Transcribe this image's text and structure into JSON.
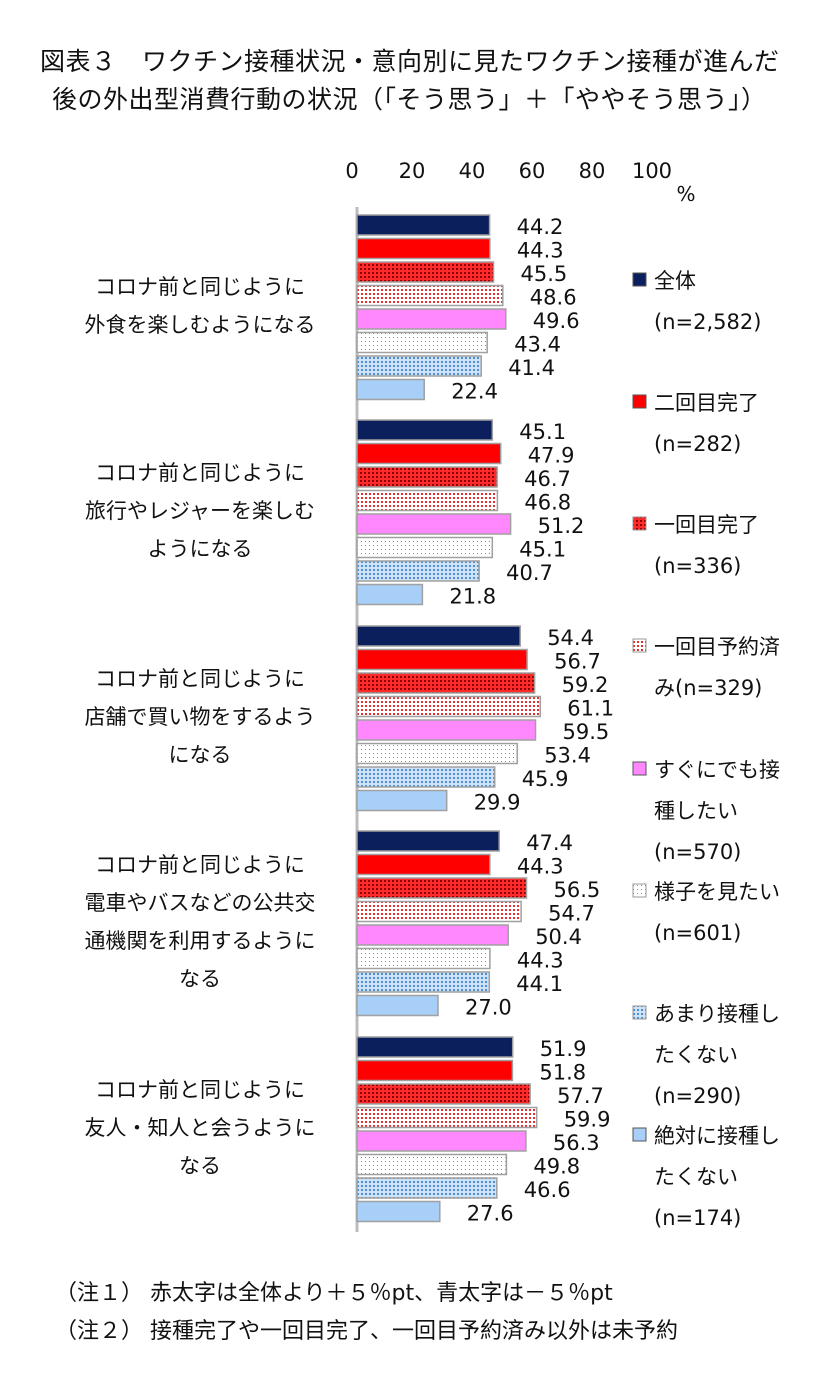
{
  "title_line1": "図表３　ワクチン接種状況・意向別に見たワクチン接種が進んだ",
  "title_line2": "後の外出型消費行動の状況（「そう思う」＋「ややそう思う」）",
  "notes": [
    "（注１） 赤太字は全体より＋５％pt、青太字は－５％pt",
    "（注２） 接種完了や一回目完了、一回目予約済み以外は未予約"
  ],
  "chart_data": {
    "type": "bar",
    "orientation": "horizontal",
    "xlim": [
      0,
      100
    ],
    "x_ticks": [
      "0",
      "20",
      "40",
      "60",
      "80",
      "100"
    ],
    "x_unit": "%",
    "grid": false,
    "legend_position": "right",
    "categories": [
      [
        "コロナ前と同じように",
        "外食を楽しむようになる"
      ],
      [
        "コロナ前と同じように",
        "旅行やレジャーを楽しむ",
        "ようになる"
      ],
      [
        "コロナ前と同じように",
        "店舗で買い物をするよう",
        "になる"
      ],
      [
        "コロナ前と同じように",
        "電車やバスなどの公共交",
        "通機関を利用するように",
        "なる"
      ],
      [
        "コロナ前と同じように",
        "友人・知人と会うように",
        "なる"
      ]
    ],
    "series": [
      {
        "name": "全体",
        "n": "(n=2,582)",
        "color": "#0a1f5c",
        "pattern": "solid",
        "values": [
          44.2,
          45.1,
          54.4,
          47.4,
          51.9
        ],
        "labels": [
          "44.2",
          "45.1",
          "54.4",
          "47.4",
          "51.9"
        ]
      },
      {
        "name": "二回目完了",
        "n": "(n=282)",
        "color": "#ff0000",
        "pattern": "solid",
        "values": [
          44.3,
          47.9,
          56.7,
          44.3,
          51.8
        ],
        "labels": [
          "44.3",
          "47.9",
          "56.7",
          "44.3",
          "51.8"
        ]
      },
      {
        "name": "一回目完了",
        "n": "(n=336)",
        "color": "#e00000",
        "pattern": "dense-dots",
        "values": [
          45.5,
          46.7,
          59.2,
          56.5,
          57.7
        ],
        "labels": [
          "45.5",
          "46.7",
          "59.2",
          "56.5",
          "57.7"
        ]
      },
      {
        "name": "一回目予約済み",
        "n": "(n=329)",
        "color": "#e03030",
        "pattern": "sparse-dots",
        "values": [
          48.6,
          46.8,
          61.1,
          54.7,
          59.9
        ],
        "labels": [
          "48.6",
          "46.8",
          "61.1",
          "54.7",
          "59.9"
        ]
      },
      {
        "name": "すぐにでも接種したい",
        "n": "(n=570)",
        "color": "#ff88ff",
        "pattern": "solid",
        "values": [
          49.6,
          51.2,
          59.5,
          50.4,
          56.3
        ],
        "labels": [
          "49.6",
          "51.2",
          "59.5",
          "50.4",
          "56.3"
        ]
      },
      {
        "name": "様子を見たい",
        "n": "(n=601)",
        "color": "#9ab6d8",
        "pattern": "light-dots",
        "values": [
          43.4,
          45.1,
          53.4,
          44.3,
          49.8
        ],
        "labels": [
          "43.4",
          "45.1",
          "53.4",
          "44.3",
          "49.8"
        ]
      },
      {
        "name": "あまり接種したくない",
        "n": "(n=290)",
        "color": "#4f8fd0",
        "pattern": "blue-dots",
        "values": [
          41.4,
          40.7,
          45.9,
          44.1,
          46.6
        ],
        "labels": [
          "41.4",
          "40.7",
          "45.9",
          "44.1",
          "46.6"
        ]
      },
      {
        "name": "絶対に接種したくない",
        "n": "(n=174)",
        "color": "#a8cff8",
        "pattern": "solid",
        "values": [
          22.4,
          21.8,
          29.9,
          27.0,
          27.6
        ],
        "labels": [
          "22.4",
          "21.8",
          "29.9",
          "27.0",
          "27.6"
        ]
      }
    ],
    "legend_lines": [
      [
        "全体",
        "(n=2,582)"
      ],
      [
        "二回目完了",
        "(n=282)"
      ],
      [
        "一回目完了",
        "(n=336)"
      ],
      [
        "一回目予約済",
        "み(n=329)"
      ],
      [
        "すぐにでも接",
        "種したい",
        "(n=570)"
      ],
      [
        "様子を見たい",
        "(n=601)"
      ],
      [
        "あまり接種し",
        "たくない",
        "(n=290)"
      ],
      [
        "絶対に接種し",
        "たくない",
        "(n=174)"
      ]
    ]
  }
}
